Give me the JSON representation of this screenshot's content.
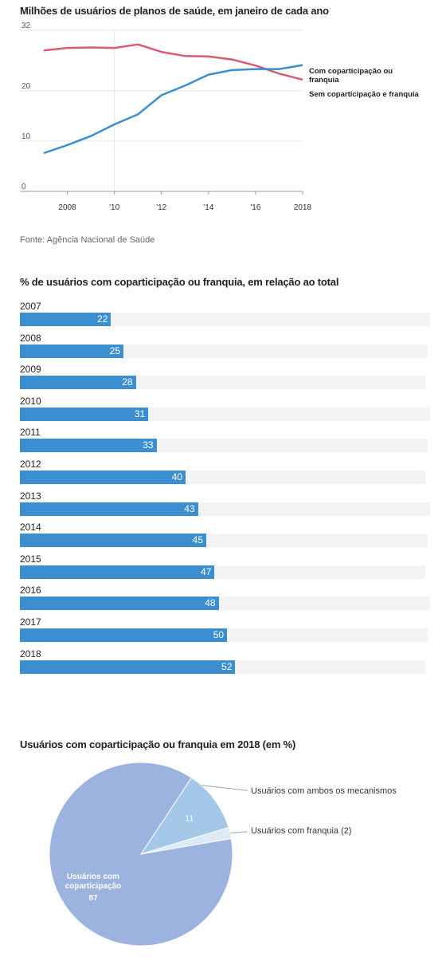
{
  "chart_data": [
    {
      "type": "line",
      "title": "Milhões de usuários de planos de saúde, em janeiro de cada ano",
      "x": [
        2007,
        2008,
        2009,
        2010,
        2011,
        2012,
        2013,
        2014,
        2015,
        2016,
        2017,
        2018
      ],
      "x_tick_labels": [
        "2008",
        "'10",
        "'12",
        "'14",
        "'16",
        "2018"
      ],
      "x_tick_values": [
        2008,
        2010,
        2012,
        2014,
        2016,
        2018
      ],
      "y_ticks": [
        0,
        10,
        20,
        32
      ],
      "ylim": [
        0,
        32
      ],
      "series": [
        {
          "name": "Sem coparticipação e franquia",
          "color": "#d95b72",
          "values": [
            28.0,
            28.5,
            28.6,
            28.5,
            29.2,
            27.7,
            26.9,
            26.8,
            26.2,
            25.0,
            23.4,
            22.2
          ]
        },
        {
          "name": "Com coparticipação ou franquia",
          "color": "#3b8fd0",
          "values": [
            7.6,
            9.2,
            11.0,
            13.3,
            15.3,
            19.1,
            21.0,
            23.2,
            24.1,
            24.3,
            24.3,
            25.1
          ]
        }
      ],
      "legend_labels": [
        {
          "series": 1,
          "lines": [
            "Com coparticipação ou",
            "franquia"
          ]
        },
        {
          "series": 0,
          "lines": [
            "Sem coparticipação e franquia"
          ]
        }
      ],
      "source": "Fonte: Agência Nacional de Saúde"
    },
    {
      "type": "bar",
      "orientation": "horizontal",
      "title": "% de usuários com coparticipação ou franquia, em relação ao total",
      "categories": [
        "2007",
        "2008",
        "2009",
        "2010",
        "2011",
        "2012",
        "2013",
        "2014",
        "2015",
        "2016",
        "2017",
        "2018"
      ],
      "values": [
        22,
        25,
        28,
        31,
        33,
        40,
        43,
        45,
        47,
        48,
        50,
        52
      ],
      "xlim": [
        0,
        100
      ],
      "color": "#3b8fd0"
    },
    {
      "type": "pie",
      "title": "Usuários com coparticipação ou franquia em 2018 (em %)",
      "slices": [
        {
          "label": "Usuários com ambos os mecanismos",
          "value": 11,
          "value_label": "11",
          "color": "#a3c8e8"
        },
        {
          "label": "Usuários com franquia (2)",
          "value": 2,
          "color": "#dde9f6"
        },
        {
          "label": "Usuários com coparticipação",
          "label_lines": [
            "Usuários com",
            "coparticipação"
          ],
          "value": 87,
          "value_label": "87",
          "color": "#9db3df"
        }
      ]
    }
  ]
}
